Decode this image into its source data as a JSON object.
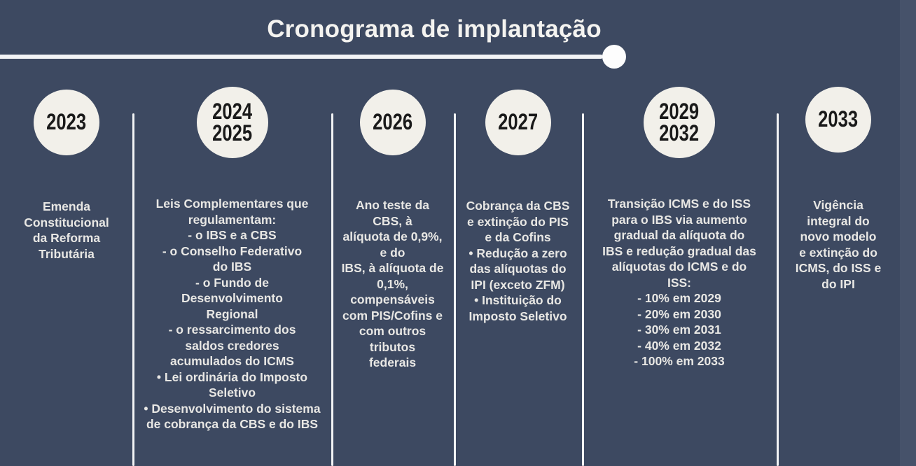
{
  "title": "Cronograma de implantação",
  "colors": {
    "background": "#3d4961",
    "circle_fill": "#f2f0ea",
    "year_text": "#1a1a1a",
    "body_text": "#e8e7e4",
    "line": "#f2f3f5",
    "right_strip": "#46526a"
  },
  "timeline": {
    "columns": [
      {
        "year": "2023",
        "description": "Emenda\nConstitucional\nda Reforma\nTributária"
      },
      {
        "year": "2024\n2025",
        "description": "Leis Complementares que\nregulamentam:\n- o IBS e a CBS\n- o Conselho Federativo\ndo IBS\n- o Fundo de\nDesenvolvimento\nRegional\n- o ressarcimento dos\nsaldos credores\nacumulados do ICMS\n• Lei ordinária do Imposto\nSeletivo\n• Desenvolvimento do sistema\nde cobrança da CBS e do IBS"
      },
      {
        "year": "2026",
        "description": "Ano teste da\nCBS, à\nalíquota de 0,9%,\ne do\nIBS, à alíquota de\n0,1%,\ncompensáveis\ncom PIS/Cofins e\ncom outros\ntributos\nfederais"
      },
      {
        "year": "2027",
        "description": "Cobrança da CBS\ne extinção do PIS\ne da Cofins\n• Redução a zero\ndas alíquotas do\nIPI (exceto ZFM)\n• Instituição do\nImposto Seletivo"
      },
      {
        "year": "2029\n2032",
        "description": "Transição ICMS e do ISS\npara o IBS via aumento\ngradual da alíquota do\nIBS e redução gradual das\nalíquotas do ICMS e do\nISS:\n- 10% em 2029\n- 20% em 2030\n- 30% em 2031\n- 40% em 2032\n- 100% em 2033"
      },
      {
        "year": "2033",
        "description": "Vigência\nintegral do\nnovo modelo\ne extinção do\nICMS, do ISS e\ndo IPI"
      }
    ]
  }
}
